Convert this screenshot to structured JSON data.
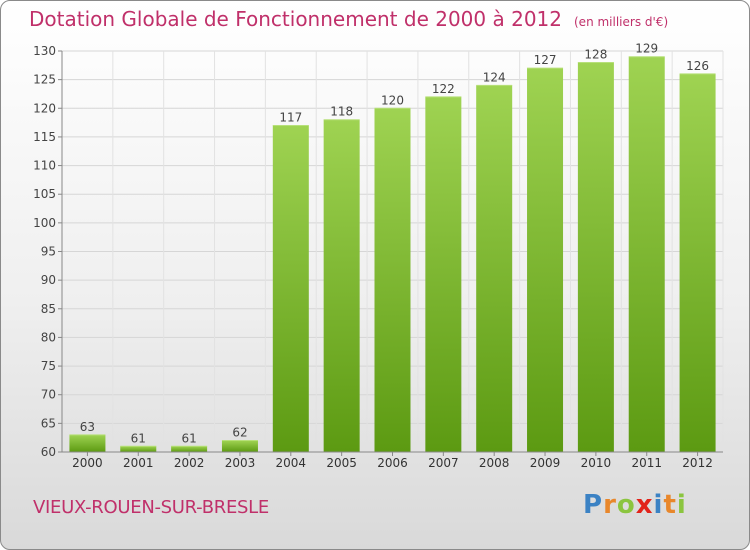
{
  "title": "Dotation Globale de Fonctionnement de 2000 à 2012",
  "unit": "(en milliers d'€)",
  "commune": "VIEUX-ROUEN-SUR-BRESLE",
  "logo": {
    "text": "Proxiti",
    "colors": [
      "#3b82c4",
      "#e8872b",
      "#8bc53f",
      "#e2231a",
      "#3b82c4",
      "#e8872b",
      "#8bc53f"
    ]
  },
  "colors": {
    "title": "#c0306a",
    "bar_top": "#9fd352",
    "bar_bottom": "#5c9a12"
  },
  "chart_data": {
    "type": "bar",
    "title": "Dotation Globale de Fonctionnement de 2000 à 2012",
    "categories": [
      "2000",
      "2001",
      "2002",
      "2003",
      "2004",
      "2005",
      "2006",
      "2007",
      "2008",
      "2009",
      "2010",
      "2011",
      "2012"
    ],
    "values": [
      63,
      61,
      61,
      62,
      117,
      118,
      120,
      122,
      124,
      127,
      128,
      129,
      126
    ],
    "ylim": [
      60,
      130
    ],
    "yticks": [
      60,
      65,
      70,
      75,
      80,
      85,
      90,
      95,
      100,
      105,
      110,
      115,
      120,
      125,
      130
    ],
    "grid": true
  }
}
